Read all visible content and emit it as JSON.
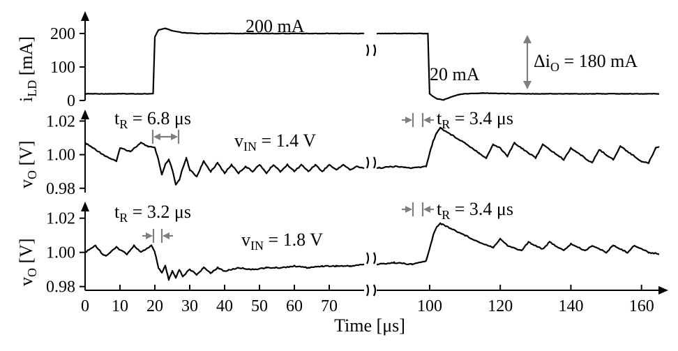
{
  "chart_data": [
    {
      "type": "line",
      "panel": "top",
      "ylabel_main": "i",
      "ylabel_sub": "LD",
      "ylabel_unit": " [mA]",
      "ylim": [
        0,
        250
      ],
      "yticks": [
        0,
        100,
        200
      ],
      "ytick_labels": [
        "0",
        "100",
        "200"
      ],
      "xlim": [
        0,
        165
      ],
      "x_break": [
        80,
        85
      ],
      "series": [
        {
          "x": [
            0,
            19.5,
            20,
            21,
            23,
            25,
            28,
            32,
            40,
            50,
            60,
            70,
            80,
            85,
            99.5,
            100,
            102,
            104,
            106,
            108,
            110,
            115,
            120,
            130,
            140,
            150,
            160,
            165
          ],
          "values": [
            20,
            20,
            190,
            210,
            215,
            208,
            202,
            200,
            200,
            200,
            200,
            200,
            200,
            200,
            200,
            20,
            5,
            2,
            10,
            17,
            20,
            22,
            21,
            20,
            20,
            20,
            20,
            20
          ]
        }
      ],
      "annotations": {
        "level_high": "200 mA",
        "level_low": "20 mA",
        "delta_main": "Δi",
        "delta_sub": "O",
        "delta_rest": " = 180 mA"
      }
    },
    {
      "type": "line",
      "panel": "middle",
      "ylabel_main": "v",
      "ylabel_sub": "O",
      "ylabel_unit": " [V]",
      "ylim": [
        0.977,
        1.026
      ],
      "yticks": [
        0.98,
        1.0,
        1.02
      ],
      "ytick_labels": [
        "0.98",
        "1.00",
        "1.02"
      ],
      "xlim": [
        0,
        165
      ],
      "x_break": [
        80,
        85
      ],
      "series": [
        {
          "x": [
            0,
            3,
            6,
            9,
            10,
            13,
            16,
            18,
            20,
            21,
            22,
            23,
            24,
            25,
            26,
            27,
            28,
            29,
            30,
            32,
            34,
            36,
            38,
            40,
            42,
            44,
            46,
            48,
            50,
            52,
            54,
            56,
            58,
            60,
            62,
            64,
            66,
            68,
            70,
            72,
            74,
            76,
            78,
            80,
            85,
            90,
            95,
            99,
            100,
            101,
            102,
            103,
            106,
            110,
            114,
            116,
            118,
            120,
            122,
            124,
            126,
            128,
            130,
            132,
            134,
            136,
            138,
            140,
            142,
            144,
            146,
            148,
            150,
            152,
            154,
            156,
            158,
            160,
            162,
            164,
            165
          ],
          "values": [
            1.007,
            1.003,
            0.999,
            0.996,
            1.004,
            1.002,
            1.007,
            1.005,
            1.004,
            0.997,
            0.988,
            0.994,
            0.997,
            0.991,
            0.982,
            0.985,
            0.992,
            0.998,
            0.991,
            0.987,
            0.996,
            0.99,
            0.995,
            0.989,
            0.994,
            0.989,
            0.993,
            0.99,
            0.994,
            0.989,
            0.994,
            0.99,
            0.994,
            0.99,
            0.994,
            0.99,
            0.994,
            0.99,
            0.994,
            0.991,
            0.994,
            0.991,
            0.993,
            0.992,
            0.992,
            0.993,
            0.992,
            0.993,
            1.001,
            1.008,
            1.013,
            1.016,
            1.012,
            1.007,
            1.001,
            0.998,
            1.006,
            1.004,
            0.999,
            1.007,
            1.004,
            1.001,
            0.998,
            1.006,
            1.003,
            1.0,
            0.997,
            1.004,
            1.001,
            0.998,
            0.995,
            1.003,
            1.0,
            0.997,
            1.005,
            1.002,
            0.999,
            0.996,
            0.995,
            1.004,
            1.005
          ]
        }
      ],
      "annotations": {
        "tr_left_main": "t",
        "tr_left_sub": "R",
        "tr_left_rest": " = 6.8 μs",
        "tr_right_main": "t",
        "tr_right_sub": "R",
        "tr_right_rest": " = 3.4 μs",
        "vin_main": "v",
        "vin_sub": "IN",
        "vin_rest": " = 1.4 V"
      }
    },
    {
      "type": "line",
      "panel": "bottom",
      "ylabel_main": "v",
      "ylabel_sub": "O",
      "ylabel_unit": " [V]",
      "ylim": [
        0.977,
        1.026
      ],
      "yticks": [
        0.98,
        1.0,
        1.02
      ],
      "ytick_labels": [
        "0.98",
        "1.00",
        "1.02"
      ],
      "xlim": [
        0,
        165
      ],
      "x_break": [
        80,
        85
      ],
      "xlabel": "Time [μs]",
      "xticks": [
        0,
        10,
        20,
        30,
        40,
        50,
        60,
        70,
        100,
        120,
        140,
        160
      ],
      "xtick_labels": [
        "0",
        "10",
        "20",
        "30",
        "40",
        "50",
        "60",
        "70",
        "100",
        "120",
        "140",
        "160"
      ],
      "series": [
        {
          "x": [
            0,
            3,
            5,
            6,
            9,
            12,
            14,
            16,
            19,
            20,
            21,
            22,
            23,
            24,
            25,
            26,
            27,
            28,
            30,
            32,
            34,
            36,
            38,
            40,
            44,
            48,
            52,
            56,
            60,
            64,
            68,
            72,
            76,
            80,
            85,
            90,
            95,
            99,
            100,
            101,
            102,
            103,
            106,
            110,
            114,
            118,
            120,
            122,
            126,
            128,
            132,
            134,
            138,
            140,
            144,
            146,
            150,
            152,
            156,
            158,
            162,
            165
          ],
          "values": [
            1.0,
            1.004,
            0.999,
            0.998,
            1.003,
            0.999,
            1.004,
            1.0,
            1.004,
            1.0,
            0.991,
            0.988,
            0.992,
            0.984,
            0.989,
            0.985,
            0.99,
            0.986,
            0.99,
            0.987,
            0.991,
            0.988,
            0.991,
            0.989,
            0.991,
            0.99,
            0.991,
            0.991,
            0.992,
            0.991,
            0.992,
            0.992,
            0.992,
            0.993,
            0.993,
            0.994,
            0.993,
            0.995,
            1.002,
            1.01,
            1.015,
            1.017,
            1.014,
            1.01,
            1.006,
            1.003,
            1.008,
            1.004,
            1.001,
            1.006,
            1.002,
            1.006,
            1.001,
            1.005,
            1.001,
            1.004,
            1.0,
            1.004,
            1.0,
            1.004,
            1.0,
            0.999
          ]
        }
      ],
      "annotations": {
        "tr_left_main": "t",
        "tr_left_sub": "R",
        "tr_left_rest": " = 3.2 μs",
        "tr_right_main": "t",
        "tr_right_sub": "R",
        "tr_right_rest": " = 3.4 μs",
        "vin_main": "v",
        "vin_sub": "IN",
        "vin_rest": " = 1.8 V"
      }
    }
  ]
}
